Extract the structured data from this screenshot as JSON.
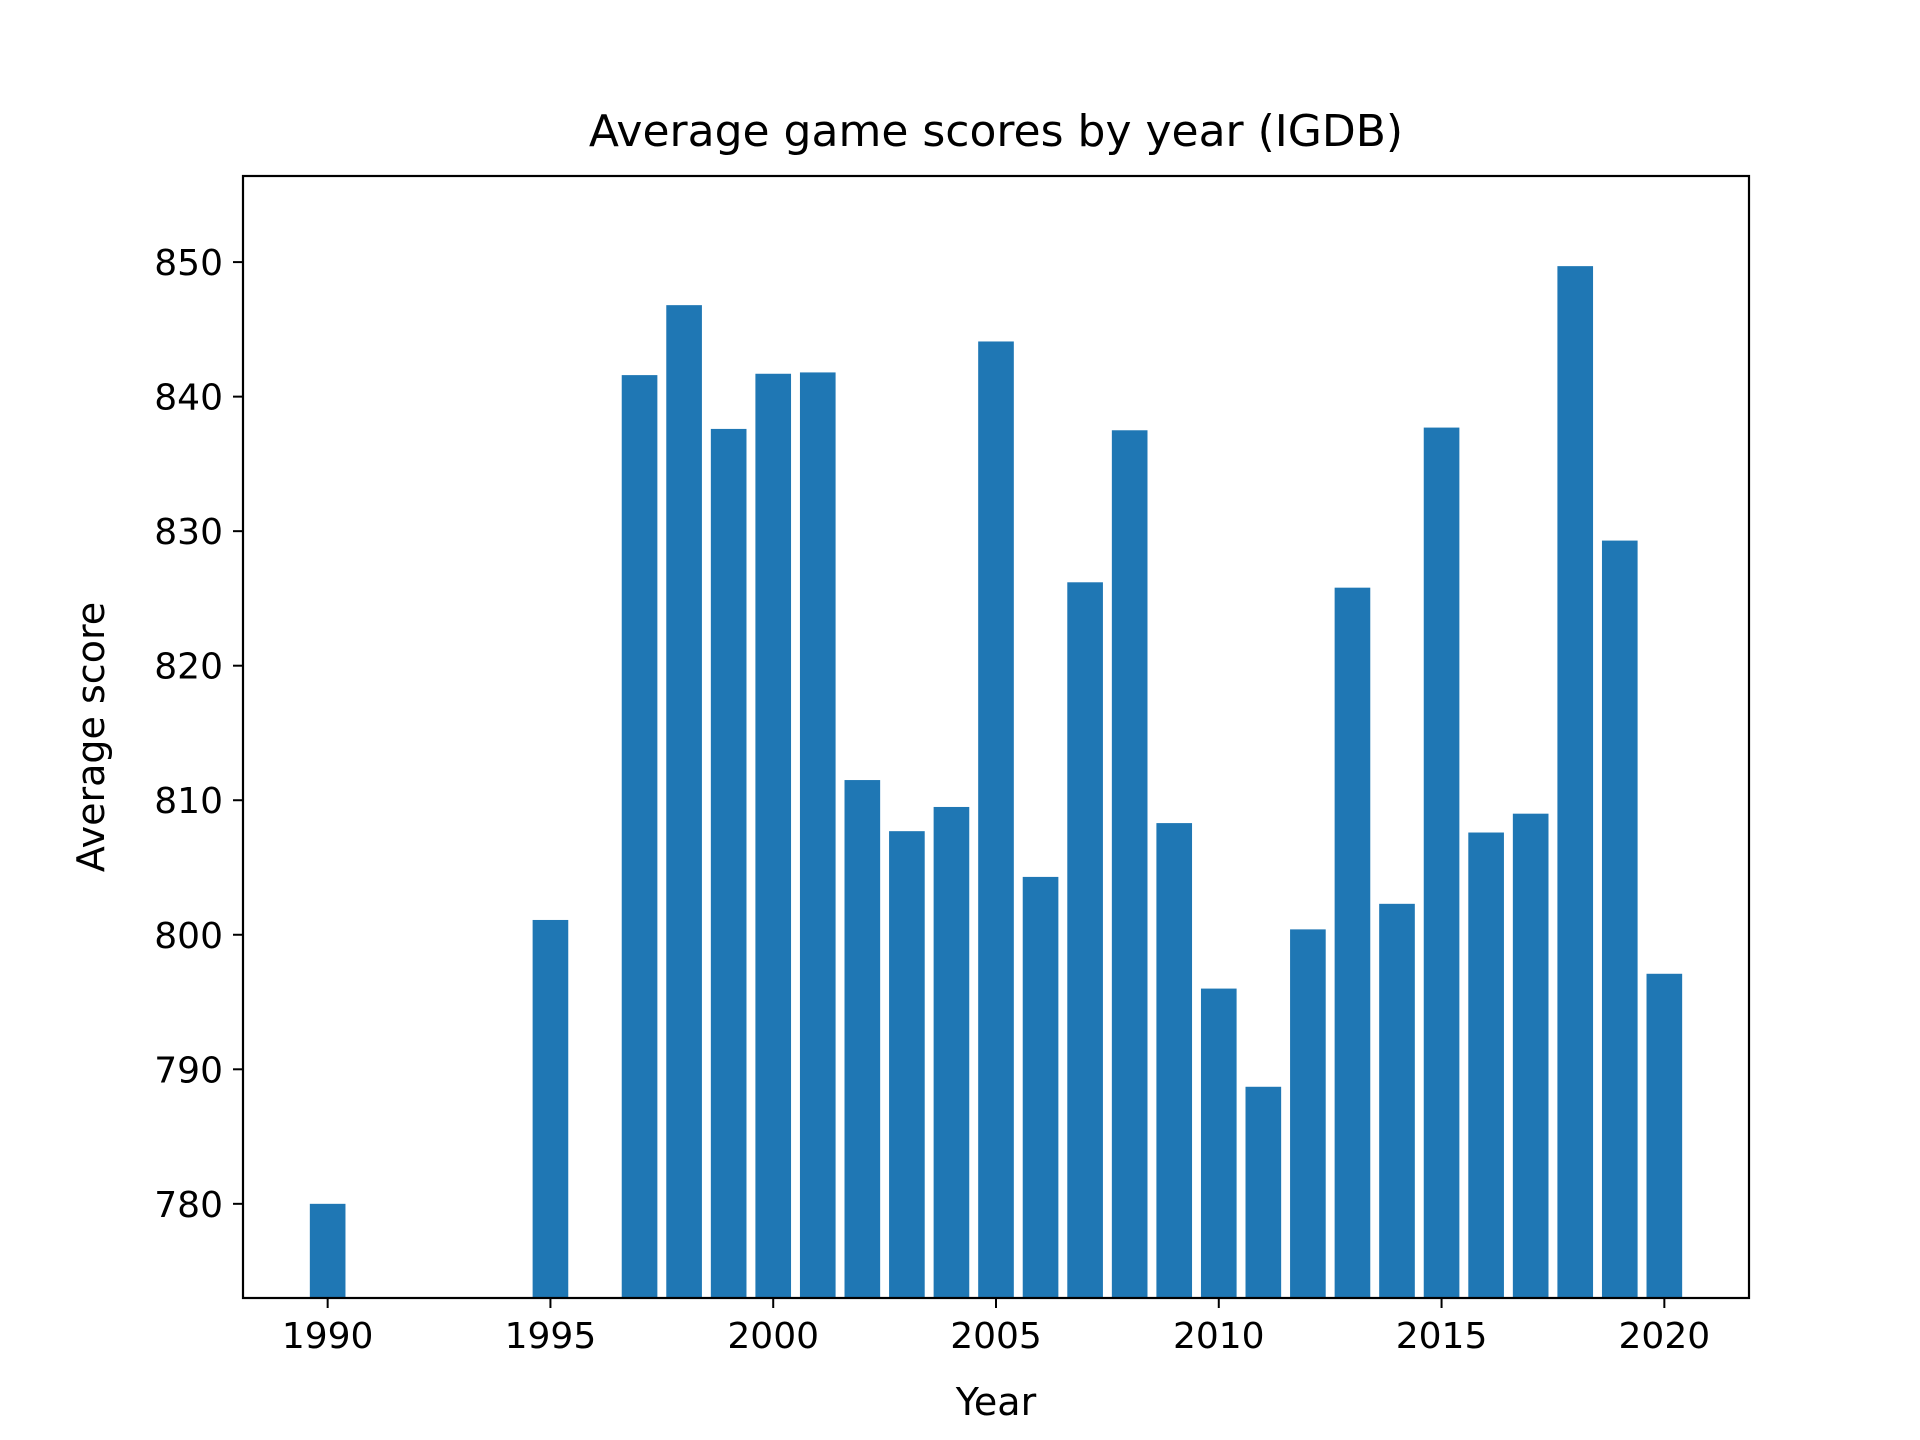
{
  "chart_data": {
    "type": "bar",
    "title": "Average game scores by year (IGDB)",
    "xlabel": "Year",
    "ylabel": "Average score",
    "x": [
      1990,
      1995,
      1997,
      1998,
      1999,
      2000,
      2001,
      2002,
      2003,
      2004,
      2005,
      2006,
      2007,
      2008,
      2009,
      2010,
      2011,
      2012,
      2013,
      2014,
      2015,
      2016,
      2017,
      2018,
      2019,
      2020
    ],
    "values": [
      780.0,
      801.1,
      841.6,
      846.8,
      837.6,
      841.7,
      841.8,
      811.5,
      807.7,
      809.5,
      844.1,
      804.3,
      826.2,
      837.5,
      808.3,
      796.0,
      788.7,
      800.4,
      825.8,
      802.3,
      837.7,
      807.6,
      809.0,
      849.7,
      829.3,
      797.1
    ],
    "xlim": [
      1988.1,
      1992.0
    ],
    "xlim_full": [
      1988.1,
      2021.9
    ],
    "ylim": [
      773,
      856.4
    ],
    "xticks": [
      "1990",
      "1995",
      "2000",
      "2005",
      "2010",
      "2015",
      "2020"
    ],
    "yticks": [
      "780",
      "790",
      "800",
      "810",
      "820",
      "830",
      "840",
      "850"
    ],
    "bar_color": "#1f77b4",
    "grid": false,
    "legend": false
  }
}
